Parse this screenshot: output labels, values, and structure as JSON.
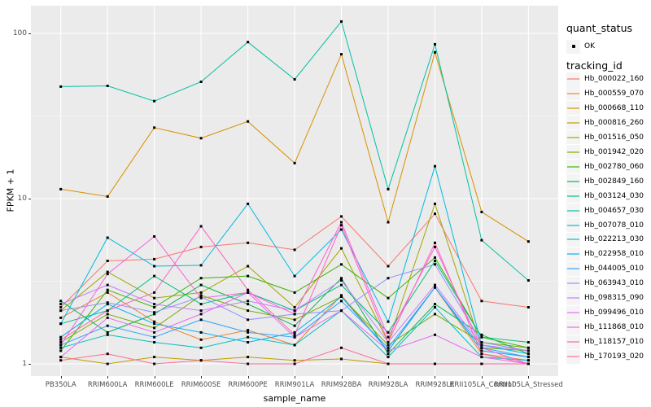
{
  "figure": {
    "y_axis": {
      "title": "FPKM + 1",
      "tick_labels": [
        "100",
        "10",
        "1"
      ],
      "tick_values": [
        100,
        10,
        1
      ]
    },
    "x_axis": {
      "title": "sample_name"
    },
    "legend": {
      "quant_status": {
        "title": "quant_status",
        "items": [
          {
            "label": "OK",
            "symbol": "black-point"
          }
        ]
      },
      "tracking_id": {
        "title": "tracking_id"
      }
    },
    "colors": {
      "panel_bg": "#EBEBEB",
      "grid_major": "#FFFFFF",
      "grid_minor": "#FFFFFF",
      "tick_text": "#4D4D4D",
      "point": "#000000"
    }
  },
  "chart_data": {
    "type": "line",
    "title": "",
    "xlabel": "sample_name",
    "ylabel": "FPKM + 1",
    "y_scale": "log10",
    "ylim": [
      1,
      150
    ],
    "y_ticks": [
      1,
      10,
      100
    ],
    "grid": true,
    "legend_position": "right",
    "point_marker": "small black square",
    "categories": [
      "PB350LA",
      "RRIM600LA",
      "RRIM600LE",
      "RRIM600SE",
      "RRIM600PE",
      "RRIM901LA",
      "RRIM928BA",
      "RRIM928LA",
      "RRIM928LE",
      "RRII105LA_Control",
      "RRII105LA_Stressed"
    ],
    "series": [
      {
        "name": "Hb_000022_160",
        "color": "#F8766D",
        "values": [
          2.2,
          4.2,
          4.3,
          5.1,
          5.4,
          4.9,
          7.8,
          3.9,
          8.1,
          2.4,
          2.2
        ]
      },
      {
        "name": "Hb_000559_070",
        "color": "#EA8331",
        "values": [
          1.9,
          2.7,
          1.8,
          1.4,
          1.6,
          1.3,
          2.6,
          1.2,
          2.9,
          1.15,
          1.05
        ]
      },
      {
        "name": "Hb_000668_110",
        "color": "#D89000",
        "values": [
          11.4,
          10.3,
          26.9,
          23.2,
          29.3,
          16.4,
          74.8,
          7.2,
          76.8,
          8.3,
          5.5
        ]
      },
      {
        "name": "Hb_000816_260",
        "color": "#C09B00",
        "values": [
          1.1,
          1.0,
          1.1,
          1.05,
          1.1,
          1.05,
          1.07,
          1.0,
          1.0,
          1.0,
          1.0
        ]
      },
      {
        "name": "Hb_001516_050",
        "color": "#A3A500",
        "values": [
          2.1,
          3.6,
          2.5,
          2.7,
          3.9,
          2.2,
          5.0,
          1.35,
          9.3,
          1.25,
          1.2
        ]
      },
      {
        "name": "Hb_001942_020",
        "color": "#7CAE00",
        "values": [
          1.35,
          2.0,
          1.65,
          2.6,
          2.1,
          1.85,
          2.55,
          1.3,
          2.0,
          1.35,
          1.25
        ]
      },
      {
        "name": "Hb_002780_060",
        "color": "#39B600",
        "values": [
          1.2,
          2.8,
          2.2,
          3.3,
          3.4,
          2.7,
          4.0,
          2.5,
          4.4,
          1.45,
          1.25
        ]
      },
      {
        "name": "Hb_002849_160",
        "color": "#00BB4E",
        "values": [
          2.4,
          1.55,
          2.0,
          3.0,
          2.3,
          1.7,
          3.3,
          1.15,
          2.3,
          1.5,
          1.15
        ]
      },
      {
        "name": "Hb_003124_030",
        "color": "#00BF7D",
        "values": [
          1.75,
          2.1,
          3.4,
          2.3,
          2.7,
          2.1,
          3.0,
          1.55,
          4.2,
          1.45,
          1.35
        ]
      },
      {
        "name": "Hb_004657_030",
        "color": "#00C1A3",
        "values": [
          47.6,
          48.1,
          38.9,
          50.9,
          88.6,
          52.7,
          118.0,
          11.4,
          85.9,
          5.6,
          3.2
        ]
      },
      {
        "name": "Hb_007078_010",
        "color": "#00BFC4",
        "values": [
          1.25,
          1.5,
          1.35,
          1.25,
          1.45,
          1.3,
          2.1,
          1.1,
          2.2,
          1.1,
          1.05
        ]
      },
      {
        "name": "Hb_022213_030",
        "color": "#00BAE0",
        "values": [
          1.75,
          5.8,
          3.9,
          3.95,
          9.3,
          3.4,
          6.5,
          1.8,
          15.7,
          1.3,
          1.15
        ]
      },
      {
        "name": "Hb_022958_010",
        "color": "#00B0F6",
        "values": [
          1.45,
          2.3,
          1.75,
          1.55,
          1.35,
          1.55,
          2.55,
          1.2,
          2.9,
          1.2,
          1.1
        ]
      },
      {
        "name": "Hb_044005_010",
        "color": "#35A2FF",
        "values": [
          1.3,
          1.7,
          1.45,
          1.85,
          1.55,
          1.45,
          2.4,
          1.25,
          2.9,
          1.25,
          1.1
        ]
      },
      {
        "name": "Hb_063943_010",
        "color": "#9590FF",
        "values": [
          2.1,
          2.35,
          2.05,
          2.55,
          1.85,
          2.0,
          2.1,
          3.3,
          4.0,
          1.35,
          1.2
        ]
      },
      {
        "name": "Hb_098315_090",
        "color": "#C77CFF",
        "values": [
          2.3,
          3.0,
          2.3,
          2.1,
          2.4,
          2.1,
          3.2,
          1.35,
          3.0,
          1.3,
          1.2
        ]
      },
      {
        "name": "Hb_099496_010",
        "color": "#E76BF3",
        "values": [
          1.1,
          1.9,
          1.55,
          2.0,
          2.7,
          1.45,
          2.1,
          1.2,
          1.5,
          1.1,
          1.0
        ]
      },
      {
        "name": "Hb_111868_010",
        "color": "#FA62DB",
        "values": [
          1.3,
          3.5,
          5.9,
          2.5,
          2.7,
          2.0,
          7.2,
          1.45,
          5.1,
          1.25,
          1.0
        ]
      },
      {
        "name": "Hb_118157_010",
        "color": "#FF62BC",
        "values": [
          1.4,
          2.1,
          2.7,
          6.8,
          2.8,
          1.5,
          6.9,
          1.35,
          5.4,
          1.15,
          1.0
        ]
      },
      {
        "name": "Hb_170193_020",
        "color": "#FF6A98",
        "values": [
          1.05,
          1.15,
          1.0,
          1.05,
          1.0,
          1.0,
          1.25,
          1.0,
          1.0,
          1.0,
          1.0
        ]
      }
    ]
  }
}
